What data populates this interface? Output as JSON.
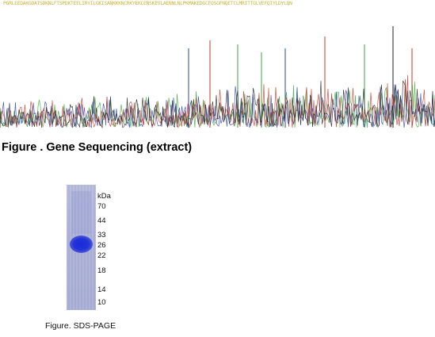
{
  "sequence_text": "PGRLEEDAKGDATSDKNLFTSPDKTEELIRYILGKISANKKKNCRKYEKCENSKEVLAENNLNLPKMAKEDGCFQSGFNQETCLMRITTGLVEFQIYLDYLQN",
  "figure1": {
    "caption": "Figure . Gene Sequencing (extract)"
  },
  "gel": {
    "unit_label": "kDa",
    "markers": [
      "70",
      "44",
      "33",
      "26",
      "22",
      "18",
      "14",
      "10"
    ]
  },
  "figure2": {
    "caption": "Figure. SDS-PAGE"
  },
  "colors": {
    "sequence_text": "#c9b43a",
    "trace_green": "#3aa63a",
    "trace_blue": "#2b3fb0",
    "trace_red": "#c0392b",
    "trace_black": "#222222",
    "gel_background": "#aeb3d8",
    "gel_band": "#2233d8"
  }
}
